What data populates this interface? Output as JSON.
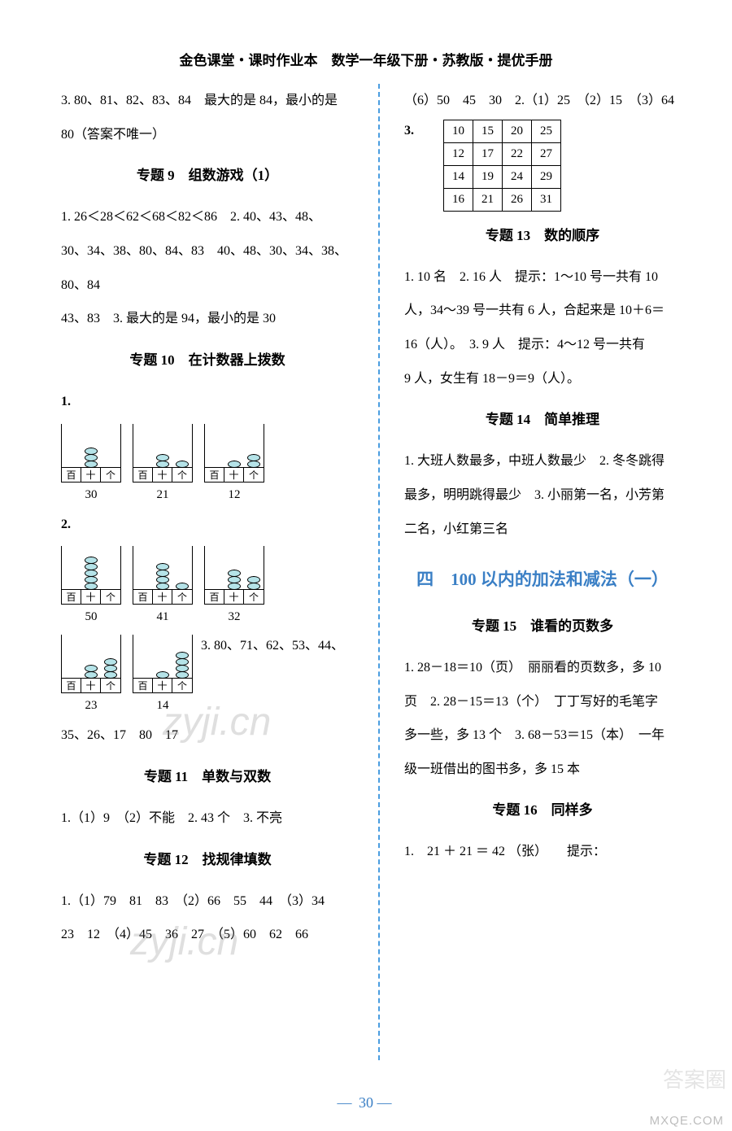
{
  "header": "金色课堂・课时作业本　数学一年级下册・苏教版・提优手册",
  "left": {
    "topLine1": "3. 80、81、82、83、84　最大的是 84，最小的是",
    "topLine2": "80（答案不唯一）",
    "h9": "专题 9　组数游戏（1）",
    "t9_l1": "1. 26＜28＜62＜68＜82＜86　2. 40、43、48、",
    "t9_l2": "30、34、38、80、84、83　40、48、30、34、38、80、84",
    "t9_l3": "43、83　3. 最大的是 94，最小的是 30",
    "h10": "专题 10　在计数器上拨数",
    "t10_q1": "1.",
    "abacus_labels": [
      "百",
      "十",
      "个"
    ],
    "ab1": [
      {
        "beads": [
          0,
          3,
          0
        ],
        "num": "30"
      },
      {
        "beads": [
          0,
          2,
          1
        ],
        "num": "21"
      },
      {
        "beads": [
          0,
          1,
          2
        ],
        "num": "12"
      }
    ],
    "t10_q2": "2.",
    "ab2": [
      {
        "beads": [
          0,
          5,
          0
        ],
        "num": "50"
      },
      {
        "beads": [
          0,
          4,
          1
        ],
        "num": "41"
      },
      {
        "beads": [
          0,
          3,
          2
        ],
        "num": "32"
      }
    ],
    "ab3_side": "3. 80、71、62、53、44、",
    "ab3": [
      {
        "beads": [
          0,
          2,
          3
        ],
        "num": "23"
      },
      {
        "beads": [
          0,
          1,
          4
        ],
        "num": "14"
      }
    ],
    "t10_last": "35、26、17　80　17",
    "h11": "专题 11　单数与双数",
    "t11": "1.（1）9　（2）不能　2. 43 个　3. 不亮",
    "h12": "专题 12　找规律填数",
    "t12_l1": "1.（1）79　81　83　（2）66　55　44　（3）34",
    "t12_l2": "23　12　（4）45　36　27　（5）60　62　66"
  },
  "right": {
    "top": "（6）50　45　30　2.（1）25　（2）15　（3）64",
    "q3_label": "3.",
    "table": {
      "rows": [
        [
          "10",
          "15",
          "20",
          "25"
        ],
        [
          "12",
          "17",
          "22",
          "27"
        ],
        [
          "14",
          "19",
          "24",
          "29"
        ],
        [
          "16",
          "21",
          "26",
          "31"
        ]
      ]
    },
    "h13": "专题 13　数的顺序",
    "t13_l1": "1. 10 名　2. 16 人　提示：1～10 号一共有 10",
    "t13_l2": "人，34～39 号一共有 6 人，合起来是 10＋6＝",
    "t13_l3": "16（人）。　3. 9 人　提示：4～12 号一共有",
    "t13_l4": "9 人，女生有 18－9＝9（人）。",
    "h14": "专题 14　简单推理",
    "t14_l1": "1. 大班人数最多，中班人数最少　2. 冬冬跳得",
    "t14_l2": "最多，明明跳得最少　3. 小丽第一名，小芳第",
    "t14_l3": "二名，小红第三名",
    "unit4": "四　100 以内的加法和减法（一）",
    "h15": "专题 15　谁看的页数多",
    "t15_l1": "1. 28－18＝10（页）　丽丽看的页数多，多 10",
    "t15_l2": "页　2. 28－15＝13（个）　丁丁写好的毛笔字",
    "t15_l3": "多一些，多 13 个　3. 68－53＝15（本）　一年",
    "t15_l4": "级一班借出的图书多，多 15 本",
    "h16": "专题 16　同样多",
    "t16_l1": "1.　21 ＋ 21 ＝ 42 （张）　　提示："
  },
  "pageNum": "30",
  "watermark1": "zyji.cn",
  "watermark2": "zyji.cn",
  "badge": "答案圈",
  "cornerUrl": "MXQE.COM",
  "colors": {
    "accent": "#3a7fc5",
    "divider": "#4a9de0",
    "bead": "#b5e3e8"
  }
}
